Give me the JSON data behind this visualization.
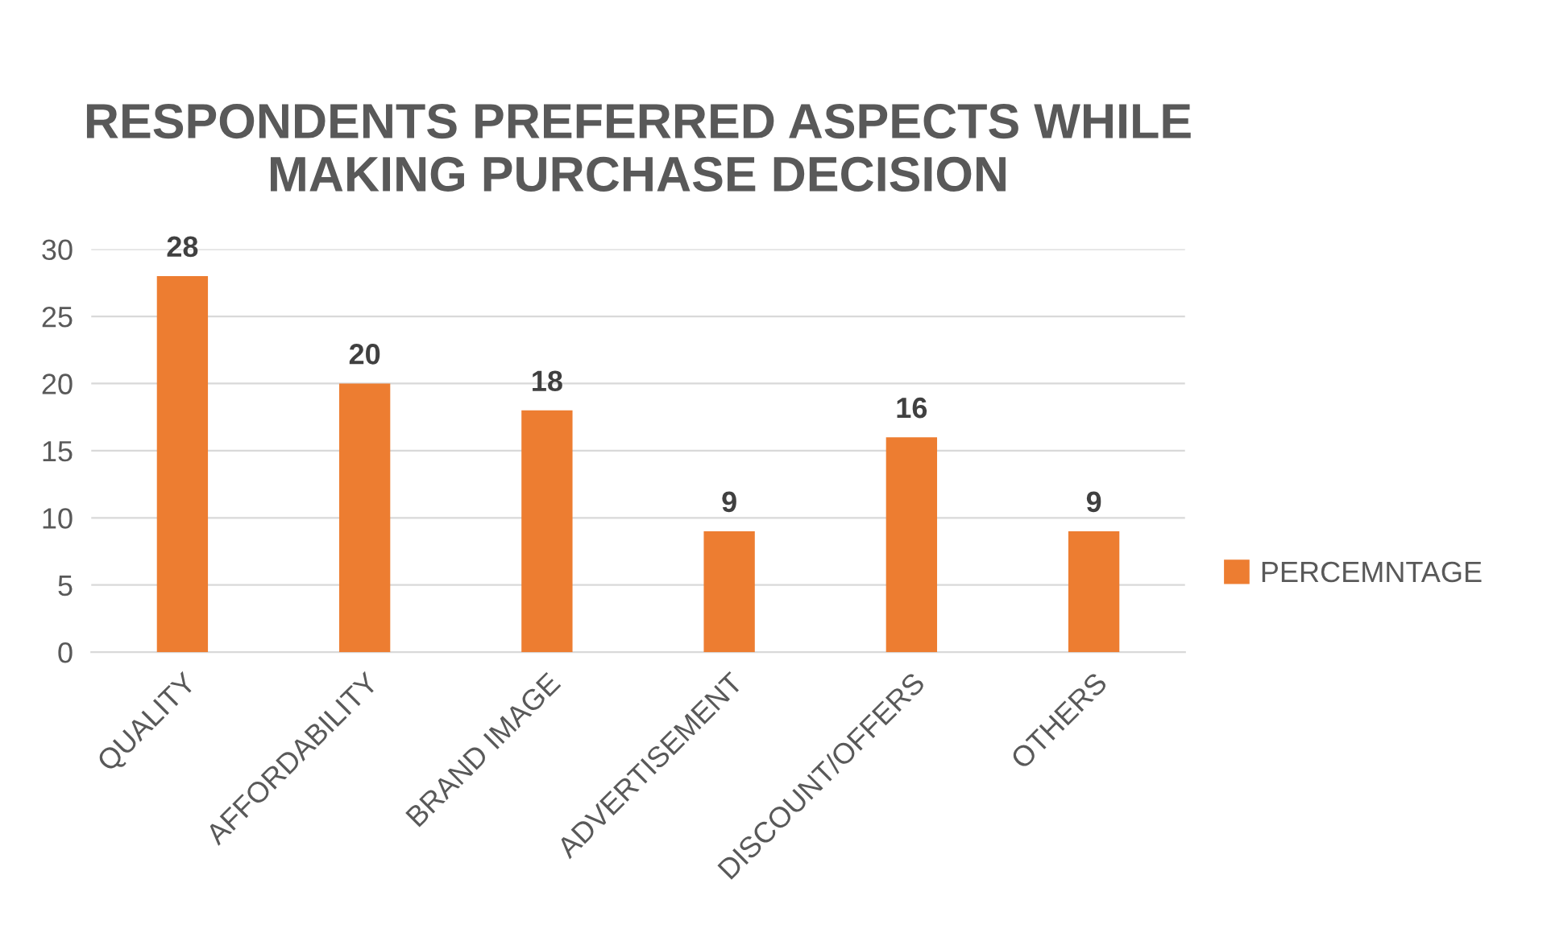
{
  "chart_data": {
    "type": "bar",
    "title": "RESPONDENTS PREFERRED ASPECTS WHILE\nMAKING PURCHASE DECISION",
    "categories": [
      "QUALITY",
      "AFFORDABILITY",
      "BRAND IMAGE",
      "ADVERTISEMENT",
      "DISCOUNT/OFFERS",
      "OTHERS"
    ],
    "series": [
      {
        "name": "PERCEMNTAGE",
        "color": "#ed7d31",
        "values": [
          28,
          20,
          18,
          9,
          16,
          9
        ]
      }
    ],
    "ylim": [
      0,
      30
    ],
    "yticks": [
      0,
      5,
      10,
      15,
      20,
      25,
      30
    ],
    "grid": "y",
    "legend": "right",
    "data_labels": true
  }
}
